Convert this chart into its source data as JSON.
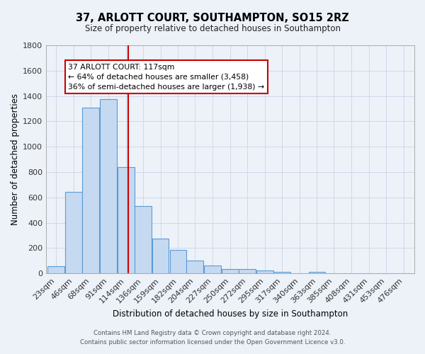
{
  "title": "37, ARLOTT COURT, SOUTHAMPTON, SO15 2RZ",
  "subtitle": "Size of property relative to detached houses in Southampton",
  "xlabel": "Distribution of detached houses by size in Southampton",
  "ylabel": "Number of detached properties",
  "bar_labels": [
    "23sqm",
    "46sqm",
    "68sqm",
    "91sqm",
    "114sqm",
    "136sqm",
    "159sqm",
    "182sqm",
    "204sqm",
    "227sqm",
    "250sqm",
    "272sqm",
    "295sqm",
    "317sqm",
    "340sqm",
    "363sqm",
    "385sqm",
    "408sqm",
    "431sqm",
    "453sqm",
    "476sqm"
  ],
  "bar_values": [
    55,
    645,
    1310,
    1375,
    840,
    530,
    275,
    185,
    103,
    65,
    37,
    35,
    25,
    15,
    0,
    12,
    0,
    0,
    0,
    0,
    0
  ],
  "bar_color": "#c5d9f0",
  "bar_edge_color": "#5b9bd5",
  "ylim": [
    0,
    1800
  ],
  "yticks": [
    0,
    200,
    400,
    600,
    800,
    1000,
    1200,
    1400,
    1600,
    1800
  ],
  "x_centers": [
    23,
    46,
    68,
    91,
    114,
    136,
    159,
    182,
    204,
    227,
    250,
    272,
    295,
    317,
    340,
    363,
    385,
    408,
    431,
    453,
    476
  ],
  "property_line_x": 117,
  "property_line_label": "37 ARLOTT COURT: 117sqm",
  "annotation_line1": "← 64% of detached houses are smaller (3,458)",
  "annotation_line2": "36% of semi-detached houses are larger (1,938) →",
  "annotation_box_color": "#ffffff",
  "annotation_box_edge": "#cc0000",
  "vline_color": "#cc0000",
  "grid_color": "#d0d8e8",
  "bg_color": "#edf2f9",
  "footer1": "Contains HM Land Registry data © Crown copyright and database right 2024.",
  "footer2": "Contains public sector information licensed under the Open Government Licence v3.0.",
  "bin_width": 23
}
